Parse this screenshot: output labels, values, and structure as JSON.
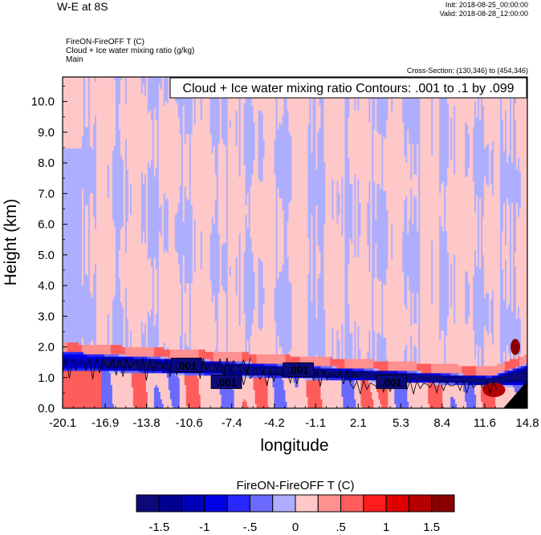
{
  "header": {
    "title": "W-E at 8S",
    "init": "Init: 2018-08-25_00:00:00",
    "valid": "Valid: 2018-08-28_12:00:00",
    "field_line": "FireON-FireOFF T   (C)",
    "overlay_line": "Cloud + Ice water mixing ratio   (g/kg)",
    "domain_line": "Main",
    "cross_section": "Cross-Section: (130,346) to (454,346)"
  },
  "chart_data": {
    "type": "heatmap",
    "title": "W-E at 8S",
    "xlabel": "longitude",
    "ylabel": "Height (km)",
    "xlim": [
      -20.1,
      14.8
    ],
    "ylim": [
      0.0,
      10.8
    ],
    "x_ticks": [
      "-20.1",
      "-16.9",
      "-13.8",
      "-10.6",
      "-7.4",
      "-4.2",
      "-1.1",
      "2.1",
      "5.3",
      "8.4",
      "11.6",
      "14.8"
    ],
    "y_ticks": [
      "0.0",
      "1.0",
      "2.0",
      "3.0",
      "4.0",
      "5.0",
      "6.0",
      "7.0",
      "8.0",
      "9.0",
      "10.0"
    ],
    "contour_annotation": "Cloud + Ice water mixing ratio Contours: .001 to .1 by .099",
    "contour_labels": [
      ".001",
      ".001",
      ".001",
      ".001"
    ],
    "background_anomaly": "slightly positive (about +0.25 C) aloft, with negative columns",
    "boundary_layer_cooling": {
      "height_km": [
        0.8,
        1.8
      ],
      "min_value_c": -1.5
    },
    "colorbar": {
      "title": "FireON-FireOFF T  (C)",
      "levels": [
        -1.75,
        -1.5,
        -1.25,
        -1.0,
        -0.75,
        -0.5,
        -0.25,
        0,
        0.25,
        0.5,
        0.75,
        1.0,
        1.25,
        1.5,
        1.75
      ],
      "labels": [
        "-1.5",
        "-1",
        "-.5",
        "0",
        ".5",
        "1",
        "1.5"
      ],
      "colors": [
        "#0a0a7a",
        "#00008f",
        "#0000b8",
        "#0000e6",
        "#2828ff",
        "#6a6aff",
        "#aeaeff",
        "#ffc8c8",
        "#ff9090",
        "#ff5c5c",
        "#ff1c1c",
        "#e00000",
        "#b40000",
        "#8a0000"
      ]
    }
  }
}
